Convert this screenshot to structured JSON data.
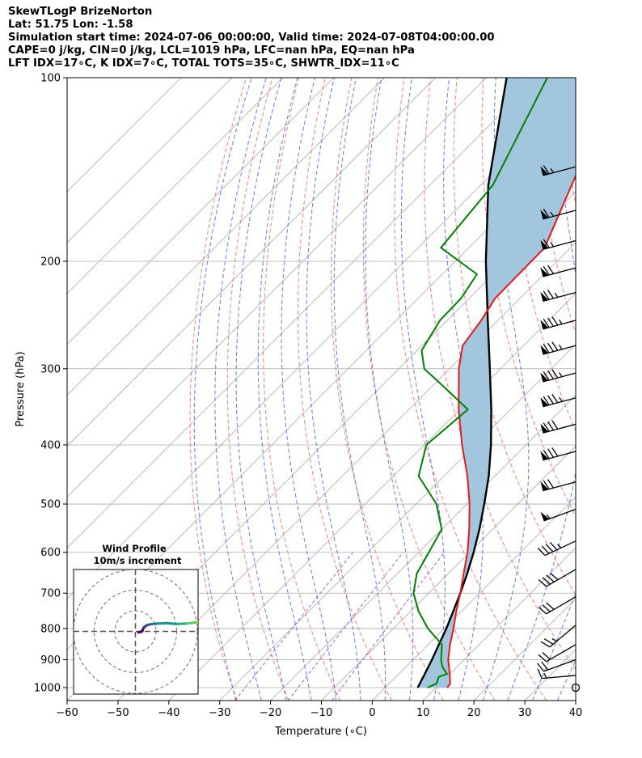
{
  "header": {
    "line1": "SkewTLogP BrizeNorton",
    "line2": "Lat: 51.75   Lon: -1.58",
    "line3": "Simulation start time: 2024-07-06_00:00:00, Valid time: 2024-07-08T04:00:00.00",
    "line4": "CAPE=0 j/kg, CIN=0 j/kg, LCL=1019 hPa, LFC=nan hPa, EQ=nan hPa",
    "line5": "LFT IDX=17∘C, K IDX=7∘C, TOTAL TOTS=35∘C, SHWTR_IDX=11∘C"
  },
  "chart_data": {
    "type": "skewt",
    "xlabel": "Temperature (∘C)",
    "ylabel": "Pressure (hPa)",
    "xlim": [
      -60,
      40
    ],
    "ylim": [
      1050,
      100
    ],
    "xticks": [
      -60,
      -50,
      -40,
      -30,
      -20,
      -10,
      0,
      10,
      20,
      30,
      40
    ],
    "yticks": [
      100,
      200,
      300,
      400,
      500,
      600,
      700,
      800,
      900,
      1000
    ],
    "colors": {
      "temperature": "#e41a1c",
      "dewpoint": "#008000",
      "parcel": "#000000",
      "fill": "#a3c6df",
      "isotherm": "#aaaaaa",
      "dry_adiabat": "#ff6666",
      "moist_adiabat": "#5a5aff",
      "mixing_ratio": "#9933cc"
    },
    "temperature": {
      "pressure": [
        1000,
        985,
        960,
        925,
        900,
        850,
        800,
        750,
        700,
        650,
        600,
        550,
        500,
        450,
        400,
        350,
        300,
        275,
        250,
        230,
        210,
        190,
        170,
        150,
        130,
        115,
        100
      ],
      "values": [
        12.2,
        12.0,
        10.6,
        8.5,
        6.9,
        4.3,
        1.8,
        -1.0,
        -3.8,
        -7.0,
        -10.4,
        -14.6,
        -19.5,
        -25.4,
        -32.6,
        -40.2,
        -48.2,
        -52.0,
        -53.3,
        -54.9,
        -55.0,
        -55.1,
        -58.4,
        -62.1,
        -66.3,
        -69.5,
        -72.7
      ]
    },
    "dewpoint": {
      "pressure": [
        1000,
        985,
        960,
        950,
        925,
        900,
        850,
        800,
        750,
        700,
        650,
        600,
        550,
        500,
        450,
        400,
        350,
        320,
        300,
        280,
        250,
        230,
        210,
        190,
        150,
        100
      ],
      "values": [
        8.3,
        9.3,
        8.4,
        9.5,
        7.2,
        5.5,
        2.7,
        -3.2,
        -8.4,
        -13.0,
        -16.2,
        -18.0,
        -20.0,
        -26.0,
        -35.0,
        -39.6,
        -38.4,
        -48.0,
        -55.0,
        -59.1,
        -61.4,
        -61.6,
        -63.2,
        -75.5,
        -77.6,
        -88.0
      ]
    },
    "parcel": {
      "pressure": [
        1000,
        950,
        900,
        850,
        800,
        750,
        700,
        650,
        600,
        550,
        500,
        450,
        400,
        350,
        300,
        250,
        200,
        150,
        100
      ],
      "values": [
        6.4,
        5.1,
        3.7,
        2.1,
        0.4,
        -1.6,
        -3.8,
        -6.3,
        -9.2,
        -12.6,
        -16.6,
        -21.2,
        -26.9,
        -33.8,
        -42.1,
        -52.0,
        -64.0,
        -78.5,
        -96.0
      ]
    },
    "wind_barbs": {
      "pressure": [
        140,
        165,
        185,
        205,
        225,
        250,
        275,
        305,
        335,
        370,
        410,
        460,
        510,
        575,
        640,
        710,
        790,
        850,
        900,
        955,
        1000
      ],
      "speed_kt": [
        65,
        65,
        65,
        70,
        75,
        85,
        85,
        85,
        85,
        80,
        80,
        70,
        55,
        45,
        40,
        30,
        25,
        20,
        20,
        15,
        0
      ],
      "direction_deg": [
        255,
        255,
        255,
        255,
        255,
        255,
        255,
        255,
        255,
        255,
        255,
        255,
        250,
        245,
        240,
        240,
        230,
        240,
        250,
        265,
        0
      ]
    },
    "inset": {
      "title": "Wind Profile",
      "subtitle": "10m/s increment",
      "type": "hodograph",
      "rings_ms": [
        10,
        20,
        30
      ],
      "u_ms": [
        1.5,
        3.2,
        4.0,
        5.5,
        7.5,
        11.0,
        15.0,
        20.0,
        25.0,
        30.0,
        32.0,
        36.0
      ],
      "v_ms": [
        -0.5,
        0.0,
        1.8,
        3.0,
        3.5,
        3.8,
        4.0,
        3.6,
        3.8,
        4.5,
        4.5,
        5.5
      ]
    }
  }
}
